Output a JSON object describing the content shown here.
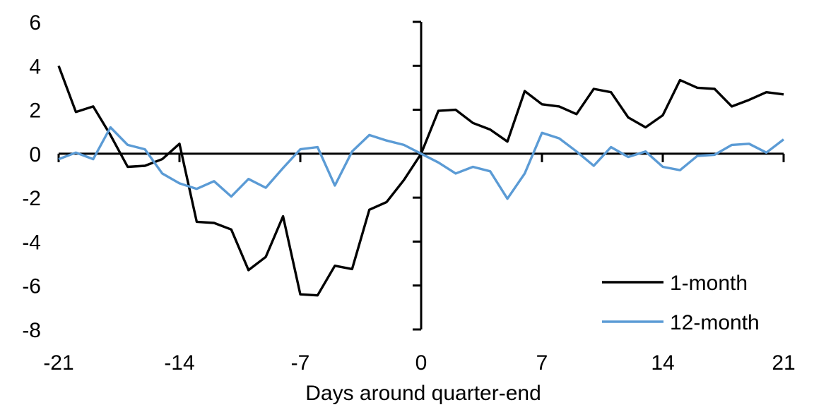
{
  "chart_data": {
    "type": "line",
    "title": "",
    "xlabel": "Days around quarter-end",
    "ylabel": "",
    "xlim": [
      -21,
      21
    ],
    "ylim": [
      -8,
      6
    ],
    "grid": false,
    "background": "#ffffff",
    "axis_color": "#000000",
    "legend_position": "lower right",
    "x_ticks": [
      -21,
      -14,
      -7,
      0,
      7,
      14,
      21
    ],
    "x_tick_labels": [
      "-21",
      "-14",
      "-7",
      "0",
      "7",
      "14",
      "21"
    ],
    "y_ticks": [
      6,
      4,
      2,
      0,
      -2,
      -4,
      -6,
      -8
    ],
    "y_tick_labels": [
      "6",
      "4",
      "2",
      "0",
      "-2",
      "-4",
      "-6",
      "-8"
    ],
    "x": [
      -21,
      -20,
      -19,
      -18,
      -17,
      -16,
      -15,
      -14,
      -13,
      -12,
      -11,
      -10,
      -9,
      -8,
      -7,
      -6,
      -5,
      -4,
      -3,
      -2,
      -1,
      0,
      1,
      2,
      3,
      4,
      5,
      6,
      7,
      8,
      9,
      10,
      11,
      12,
      13,
      14,
      15,
      16,
      17,
      18,
      19,
      20,
      21
    ],
    "series": [
      {
        "name": "1-month",
        "color": "#000000",
        "values": [
          4.0,
          1.9,
          2.15,
          0.85,
          -0.6,
          -0.55,
          -0.25,
          0.45,
          -3.1,
          -3.15,
          -3.45,
          -5.3,
          -4.7,
          -2.85,
          -6.4,
          -6.45,
          -5.1,
          -5.25,
          -2.55,
          -2.2,
          -1.2,
          0.0,
          1.95,
          2.0,
          1.4,
          1.1,
          0.55,
          2.85,
          2.25,
          2.15,
          1.8,
          2.95,
          2.8,
          1.65,
          1.2,
          1.75,
          3.35,
          3.0,
          2.95,
          2.15,
          2.45,
          2.8,
          2.7
        ]
      },
      {
        "name": "12-month",
        "color": "#5B9BD5",
        "values": [
          -0.25,
          0.05,
          -0.25,
          1.2,
          0.4,
          0.2,
          -0.9,
          -1.35,
          -1.6,
          -1.25,
          -1.95,
          -1.15,
          -1.55,
          -0.65,
          0.2,
          0.3,
          -1.45,
          0.1,
          0.85,
          0.6,
          0.4,
          0.0,
          -0.4,
          -0.9,
          -0.6,
          -0.8,
          -2.05,
          -0.9,
          0.95,
          0.7,
          0.1,
          -0.55,
          0.3,
          -0.15,
          0.1,
          -0.6,
          -0.75,
          -0.1,
          -0.05,
          0.4,
          0.45,
          0.05,
          0.65
        ]
      }
    ]
  }
}
